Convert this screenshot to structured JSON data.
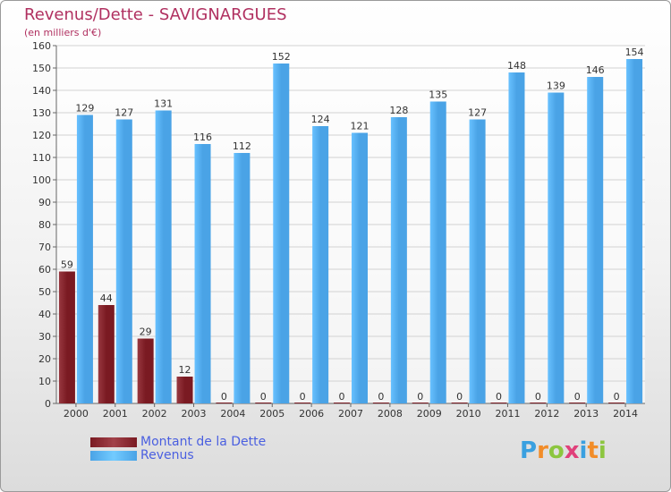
{
  "title": "Revenus/Dette - SAVIGNARGUES",
  "subtitle": "(en milliers d'€)",
  "logo": {
    "letters": [
      "P",
      "r",
      "o",
      "x",
      "i",
      "t",
      "i"
    ],
    "colors": [
      "#3aa0e0",
      "#f28c28",
      "#8cc63f",
      "#e0407a",
      "#3aa0e0",
      "#f28c28",
      "#8cc63f"
    ]
  },
  "legend": {
    "debt_label": "Montant de la Dette",
    "revenue_label": "Revenus"
  },
  "colors": {
    "debt": "#7a1a22",
    "revenue": "#4aa3e6",
    "axis_text": "#333333",
    "grid": "#d2d2d2"
  },
  "chart_data": {
    "type": "bar",
    "title": "Revenus/Dette - SAVIGNARGUES",
    "subtitle": "(en milliers d'€)",
    "xlabel": "",
    "ylabel": "",
    "ylim": [
      0,
      160
    ],
    "yticks": [
      0,
      10,
      20,
      30,
      40,
      50,
      60,
      70,
      80,
      90,
      100,
      110,
      120,
      130,
      140,
      150,
      160
    ],
    "categories": [
      "2000",
      "2001",
      "2002",
      "2003",
      "2004",
      "2005",
      "2006",
      "2007",
      "2008",
      "2009",
      "2010",
      "2011",
      "2012",
      "2013",
      "2014"
    ],
    "series": [
      {
        "name": "Montant de la Dette",
        "values": [
          59,
          44,
          29,
          12,
          0,
          0,
          0,
          0,
          0,
          0,
          0,
          0,
          0,
          0,
          0
        ]
      },
      {
        "name": "Revenus",
        "values": [
          129,
          127,
          131,
          116,
          112,
          152,
          124,
          121,
          128,
          135,
          127,
          148,
          139,
          146,
          154
        ]
      }
    ],
    "grid": true,
    "legend_position": "bottom-left"
  }
}
